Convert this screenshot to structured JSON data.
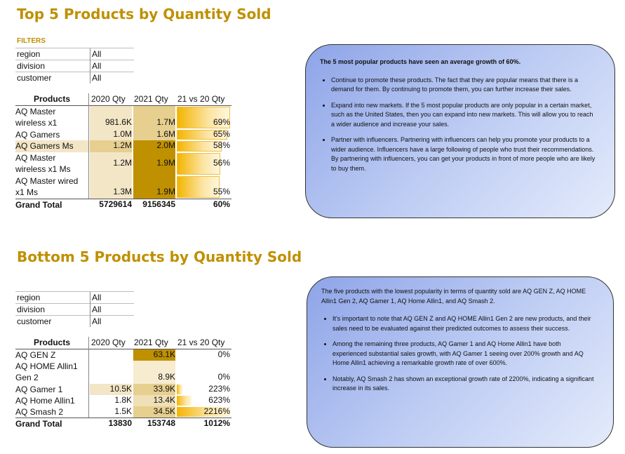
{
  "top": {
    "title": "Top 5 Products by Quantity Sold",
    "filters_label": "FILTERS",
    "filters": [
      {
        "key": "region",
        "value": "All"
      },
      {
        "key": "division",
        "value": "All"
      },
      {
        "key": "customer",
        "value": "All"
      }
    ],
    "headers": {
      "products": "Products",
      "q2020": "2020 Qty",
      "q2021": "2021 Qty",
      "growth": "21 vs 20 Qty"
    },
    "rows": [
      {
        "name1": "AQ Master",
        "name2": "wireless x1",
        "q2020": "981.6K",
        "q2021": "1.7M",
        "growth": "69%",
        "growth_pct": 69
      },
      {
        "name1": "AQ Gamers",
        "name2": "",
        "q2020": "1.0M",
        "q2021": "1.6M",
        "growth": "65%",
        "growth_pct": 65
      },
      {
        "name1": "AQ Gamers Ms",
        "name2": "",
        "q2020": "1.2M",
        "q2021": "2.0M",
        "growth": "58%",
        "growth_pct": 58
      },
      {
        "name1": "AQ Master",
        "name2": "wireless x1 Ms",
        "q2020": "1.2M",
        "q2021": "1.9M",
        "growth": "56%",
        "growth_pct": 56
      },
      {
        "name1": "AQ Master wired",
        "name2": "x1 Ms",
        "q2020": "1.3M",
        "q2021": "1.9M",
        "growth": "55%",
        "growth_pct": 55
      }
    ],
    "total": {
      "label": "Grand Total",
      "q2020": "5729614",
      "q2021": "9156345",
      "growth": "60%"
    },
    "callout": {
      "lead": "The 5 most popular products have seen an average growth of 60%.",
      "bullets": [
        "Continue to promote these products. The fact that they are popular means that there is a demand for them. By continuing to promote them, you can further increase their sales.",
        "Expand into new markets. If the 5 most popular products are only popular in a certain market, such as the United States, then you can expand into new markets. This will allow you to reach a wider audience and increase your sales.",
        "Partner with influencers. Partnering with influencers can help you promote your products to a wider audience. Influencers have a large following of people who trust their recommendations. By partnering with influencers, you can get your products in front of more people who are likely to buy them."
      ]
    }
  },
  "bottom": {
    "title": "Bottom 5 Products by Quantity Sold",
    "filters": [
      {
        "key": "region",
        "value": "All"
      },
      {
        "key": "division",
        "value": "All"
      },
      {
        "key": "customer",
        "value": "All"
      }
    ],
    "headers": {
      "products": "Products",
      "q2020": "2020 Qty",
      "q2021": "2021 Qty",
      "growth": "21 vs 20 Qty"
    },
    "rows": [
      {
        "name1": "AQ GEN Z",
        "name2": "",
        "q2020": "",
        "q2021": "63.1K",
        "growth": "0%",
        "growth_pct": 0
      },
      {
        "name1": "AQ HOME Allin1",
        "name2": "Gen 2",
        "q2020": "",
        "q2021": "8.9K",
        "growth": "0%",
        "growth_pct": 0
      },
      {
        "name1": "AQ Gamer 1",
        "name2": "",
        "q2020": "10.5K",
        "q2021": "33.9K",
        "growth": "223%",
        "growth_pct": 223
      },
      {
        "name1": "AQ Home Allin1",
        "name2": "",
        "q2020": "1.8K",
        "q2021": "13.4K",
        "growth": "623%",
        "growth_pct": 623
      },
      {
        "name1": "AQ Smash 2",
        "name2": "",
        "q2020": "1.5K",
        "q2021": "34.5K",
        "growth": "2216%",
        "growth_pct": 2216
      }
    ],
    "total": {
      "label": "Grand Total",
      "q2020": "13830",
      "q2021": "153748",
      "growth": "1012%"
    },
    "callout": {
      "lead": "The five products with the lowest popularity in terms of quantity sold are AQ GEN Z, AQ HOME Allin1 Gen 2, AQ Gamer 1, AQ Home Allin1, and AQ Smash 2.",
      "bullets": [
        "It's important to note that AQ GEN Z and AQ HOME Allin1 Gen 2 are new products, and their sales need to be evaluated against their predicted outcomes to assess their success.",
        "Among the remaining three products, AQ Gamer 1 and AQ Home Allin1 have both experienced substantial sales growth, with AQ Gamer 1 seeing over 200% growth and AQ Home Allin1 achieving a remarkable growth rate of over 600%.",
        "Notably, AQ Smash 2 has shown an exceptional growth rate of 2200%, indicating a significant increase in its sales."
      ]
    }
  },
  "colors": {
    "title": "#bf9000",
    "fill_light": "#f3e6c6",
    "fill_mid": "#e6cf8f",
    "fill_dark": "#bf9000",
    "bar": "#f4b400"
  }
}
